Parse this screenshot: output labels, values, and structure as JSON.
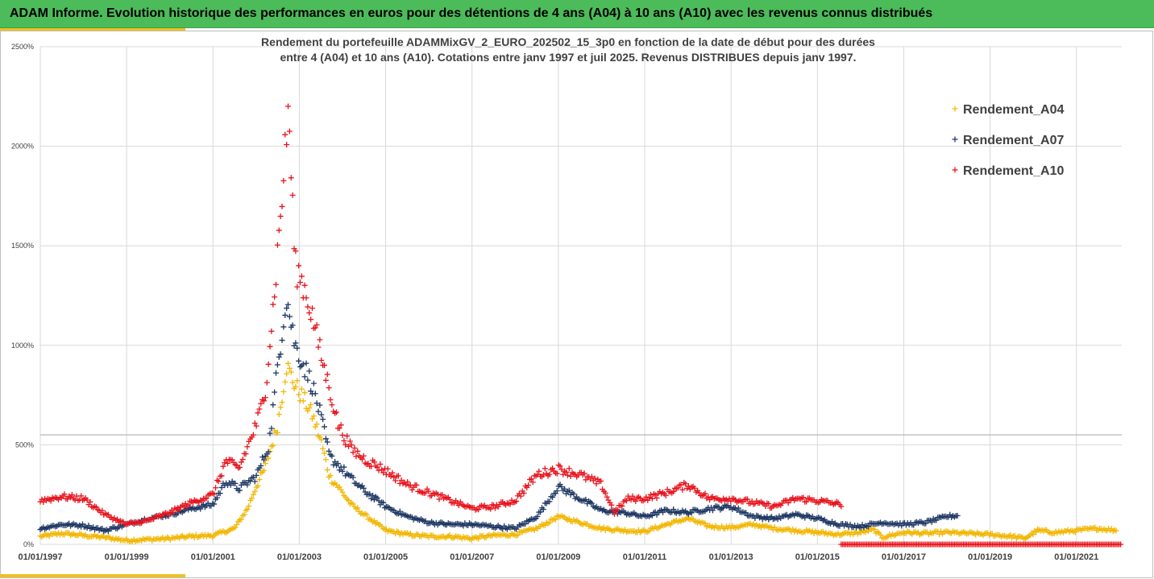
{
  "header": {
    "title": "ADAM Informe. Evolution historique des performances en euros pour des détentions de 4 ans (A04) à 10 ans (A10) avec les revenus connus distribués"
  },
  "chart_data": {
    "type": "scatter",
    "subtitle_line1": "Rendement du portefeuille ADAMMixGV_2_EURO_202502_15_3p0 en fonction de la date de début pour des durées",
    "subtitle_line2": "entre 4 (A04) et 10 ans (A10). Cotations entre janv 1997 et juil 2025. Revenus DISTRIBUES depuis janv 1997.",
    "ylim": [
      0,
      2500
    ],
    "y_ticks": [
      "0%",
      "500%",
      "1000%",
      "1500%",
      "2000%",
      "2500%"
    ],
    "y_tick_values": [
      0,
      500,
      1000,
      1500,
      2000,
      2500
    ],
    "x_ticks": [
      "01/01/1997",
      "01/01/1999",
      "01/01/2001",
      "01/01/2003",
      "01/01/2005",
      "01/01/2007",
      "01/01/2009",
      "01/01/2011",
      "01/01/2013",
      "01/01/2015",
      "01/01/2017",
      "01/01/2019",
      "01/01/2021"
    ],
    "x_tick_years": [
      1997,
      1999,
      2001,
      2003,
      2005,
      2007,
      2009,
      2011,
      2013,
      2015,
      2017,
      2019,
      2021
    ],
    "xlim_years": [
      1997,
      2022.05
    ],
    "reference_line_value": 550,
    "grid": true,
    "legend_position": "top-right",
    "marker": "+",
    "series": [
      {
        "name": "Rendement_A04",
        "color": "#f2b705",
        "end_year": 2021.95,
        "points": [
          [
            1997.0,
            40
          ],
          [
            1997.5,
            55
          ],
          [
            1998.0,
            45
          ],
          [
            1998.5,
            35
          ],
          [
            1999.0,
            20
          ],
          [
            1999.5,
            25
          ],
          [
            2000.0,
            30
          ],
          [
            2000.5,
            40
          ],
          [
            2001.0,
            45
          ],
          [
            2001.5,
            80
          ],
          [
            2001.8,
            180
          ],
          [
            2002.0,
            290
          ],
          [
            2002.2,
            380
          ],
          [
            2002.5,
            600
          ],
          [
            2002.7,
            900
          ],
          [
            2002.9,
            800
          ],
          [
            2003.1,
            730
          ],
          [
            2003.3,
            650
          ],
          [
            2003.5,
            520
          ],
          [
            2003.7,
            340
          ],
          [
            2003.9,
            290
          ],
          [
            2004.2,
            200
          ],
          [
            2004.5,
            150
          ],
          [
            2005.0,
            70
          ],
          [
            2005.5,
            50
          ],
          [
            2006.0,
            40
          ],
          [
            2006.5,
            40
          ],
          [
            2007.0,
            30
          ],
          [
            2007.5,
            45
          ],
          [
            2008.0,
            50
          ],
          [
            2008.5,
            80
          ],
          [
            2009.0,
            140
          ],
          [
            2009.5,
            110
          ],
          [
            2010.0,
            80
          ],
          [
            2010.5,
            70
          ],
          [
            2011.0,
            65
          ],
          [
            2011.5,
            100
          ],
          [
            2012.0,
            130
          ],
          [
            2012.5,
            90
          ],
          [
            2013.0,
            85
          ],
          [
            2013.5,
            100
          ],
          [
            2014.0,
            80
          ],
          [
            2014.5,
            70
          ],
          [
            2015.0,
            60
          ],
          [
            2015.5,
            50
          ],
          [
            2016.0,
            60
          ],
          [
            2016.3,
            75
          ],
          [
            2016.5,
            35
          ],
          [
            2017.0,
            60
          ],
          [
            2017.5,
            55
          ],
          [
            2018.0,
            60
          ],
          [
            2018.5,
            55
          ],
          [
            2019.0,
            50
          ],
          [
            2019.5,
            40
          ],
          [
            2019.8,
            30
          ],
          [
            2020.1,
            70
          ],
          [
            2020.5,
            60
          ],
          [
            2021.0,
            70
          ],
          [
            2021.5,
            80
          ],
          [
            2021.95,
            70
          ]
        ]
      },
      {
        "name": "Rendement_A07",
        "color": "#1f3864",
        "end_year": 2018.25,
        "points": [
          [
            1997.0,
            80
          ],
          [
            1997.5,
            100
          ],
          [
            1998.0,
            95
          ],
          [
            1998.5,
            70
          ],
          [
            1999.0,
            100
          ],
          [
            1999.5,
            130
          ],
          [
            2000.0,
            150
          ],
          [
            2000.5,
            180
          ],
          [
            2001.0,
            200
          ],
          [
            2001.3,
            320
          ],
          [
            2001.6,
            280
          ],
          [
            2002.0,
            340
          ],
          [
            2002.3,
            500
          ],
          [
            2002.5,
            900
          ],
          [
            2002.7,
            1250
          ],
          [
            2002.9,
            1000
          ],
          [
            2003.1,
            900
          ],
          [
            2003.3,
            800
          ],
          [
            2003.5,
            640
          ],
          [
            2003.7,
            440
          ],
          [
            2003.9,
            400
          ],
          [
            2004.2,
            330
          ],
          [
            2004.5,
            270
          ],
          [
            2005.0,
            190
          ],
          [
            2005.5,
            140
          ],
          [
            2006.0,
            110
          ],
          [
            2006.5,
            100
          ],
          [
            2007.0,
            100
          ],
          [
            2007.5,
            90
          ],
          [
            2008.0,
            80
          ],
          [
            2008.5,
            140
          ],
          [
            2009.0,
            290
          ],
          [
            2009.5,
            230
          ],
          [
            2010.0,
            170
          ],
          [
            2010.5,
            160
          ],
          [
            2011.0,
            140
          ],
          [
            2011.5,
            170
          ],
          [
            2012.0,
            160
          ],
          [
            2012.5,
            180
          ],
          [
            2013.0,
            190
          ],
          [
            2013.5,
            140
          ],
          [
            2014.0,
            130
          ],
          [
            2014.5,
            150
          ],
          [
            2015.0,
            130
          ],
          [
            2015.5,
            100
          ],
          [
            2016.0,
            90
          ],
          [
            2016.5,
            110
          ],
          [
            2017.0,
            100
          ],
          [
            2017.5,
            110
          ],
          [
            2018.0,
            140
          ],
          [
            2018.25,
            145
          ]
        ]
      },
      {
        "name": "Rendement_A10",
        "color": "#e8131c",
        "end_year": 2015.55,
        "points": [
          [
            1997.0,
            220
          ],
          [
            1997.5,
            240
          ],
          [
            1998.0,
            230
          ],
          [
            1998.5,
            150
          ],
          [
            1999.0,
            100
          ],
          [
            1999.5,
            120
          ],
          [
            2000.0,
            160
          ],
          [
            2000.5,
            210
          ],
          [
            2001.0,
            250
          ],
          [
            2001.3,
            420
          ],
          [
            2001.6,
            380
          ],
          [
            2002.0,
            600
          ],
          [
            2002.2,
            750
          ],
          [
            2002.4,
            1200
          ],
          [
            2002.6,
            1750
          ],
          [
            2002.75,
            2200
          ],
          [
            2002.9,
            1400
          ],
          [
            2003.1,
            1300
          ],
          [
            2003.3,
            1150
          ],
          [
            2003.5,
            950
          ],
          [
            2003.7,
            780
          ],
          [
            2003.9,
            600
          ],
          [
            2004.2,
            480
          ],
          [
            2004.5,
            430
          ],
          [
            2005.0,
            370
          ],
          [
            2005.5,
            300
          ],
          [
            2006.0,
            260
          ],
          [
            2006.5,
            220
          ],
          [
            2007.0,
            180
          ],
          [
            2007.5,
            190
          ],
          [
            2008.0,
            220
          ],
          [
            2008.5,
            350
          ],
          [
            2009.0,
            380
          ],
          [
            2009.5,
            350
          ],
          [
            2010.0,
            300
          ],
          [
            2010.3,
            160
          ],
          [
            2010.6,
            230
          ],
          [
            2011.0,
            230
          ],
          [
            2011.5,
            260
          ],
          [
            2012.0,
            300
          ],
          [
            2012.5,
            230
          ],
          [
            2013.0,
            230
          ],
          [
            2013.5,
            210
          ],
          [
            2014.0,
            190
          ],
          [
            2014.5,
            230
          ],
          [
            2015.0,
            220
          ],
          [
            2015.55,
            200
          ]
        ]
      },
      {
        "name": "Rendement_A10 (zero)",
        "color": "#e8131c",
        "points": [
          [
            2015.55,
            0
          ],
          [
            2022.05,
            0
          ]
        ]
      }
    ]
  }
}
